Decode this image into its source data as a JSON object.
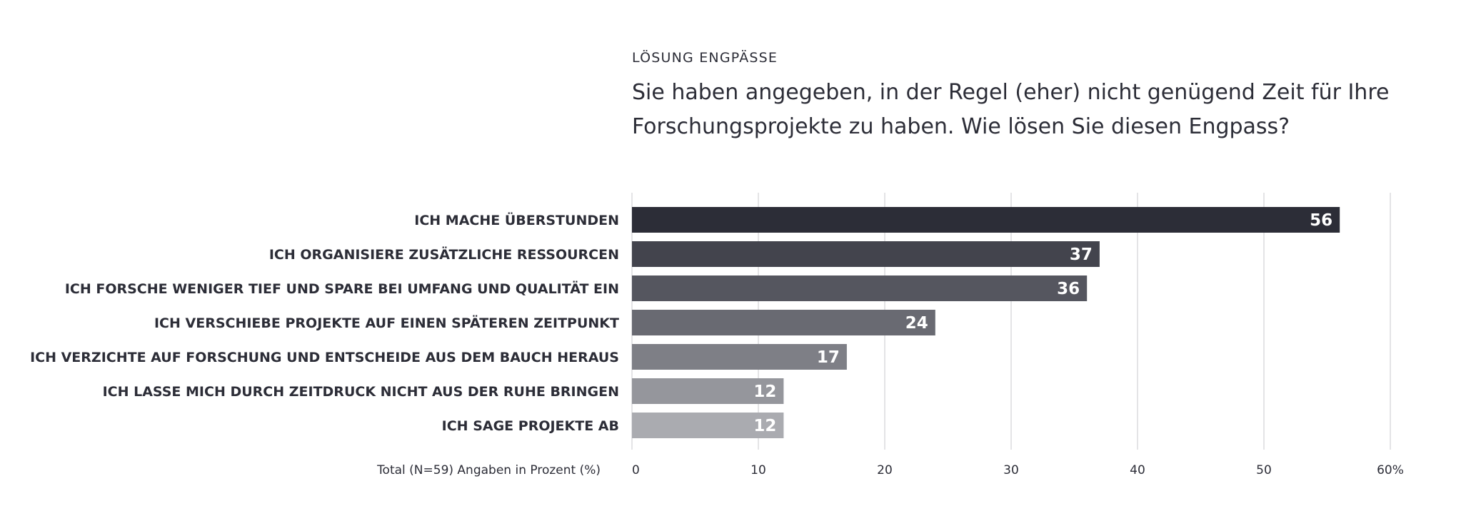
{
  "header": {
    "kicker": "LÖSUNG ENGPÄSSE",
    "question": "Sie haben angegeben, in der Regel (eher) nicht genügend Zeit für Ihre Forschungsprojekte zu haben. Wie lösen Sie diesen Engpass?"
  },
  "chart_data": {
    "type": "bar",
    "orientation": "horizontal",
    "title": "Sie haben angegeben, in der Regel (eher) nicht genügend Zeit für Ihre Forschungsprojekte zu haben. Wie lösen Sie diesen Engpass?",
    "categories": [
      "ICH MACHE ÜBERSTUNDEN",
      "ICH ORGANISIERE ZUSÄTZLICHE RESSOURCEN",
      "ICH FORSCHE WENIGER TIEF UND SPARE BEI UMFANG UND QUALITÄT EIN",
      "ICH VERSCHIEBE PROJEKTE AUF EINEN SPÄTEREN ZEITPUNKT",
      "ICH VERZICHTE AUF FORSCHUNG UND ENTSCHEIDE AUS DEM BAUCH HERAUS",
      "ICH LASSE MICH DURCH ZEITDRUCK NICHT AUS DER RUHE BRINGEN",
      "ICH SAGE PROJEKTE AB"
    ],
    "values": [
      56,
      37,
      36,
      24,
      17,
      12,
      12
    ],
    "colors": [
      "#2c2d37",
      "#43444d",
      "#55565f",
      "#696a72",
      "#7e7f86",
      "#95969c",
      "#aaabb0"
    ],
    "xlim": [
      0,
      60
    ],
    "ticks": [
      0,
      10,
      20,
      30,
      40,
      50,
      60
    ],
    "tick_labels": [
      "0",
      "10",
      "20",
      "30",
      "40",
      "50",
      "60%"
    ],
    "xlabel": "Total (N=59) Angaben in Prozent (%)",
    "grid": true
  }
}
